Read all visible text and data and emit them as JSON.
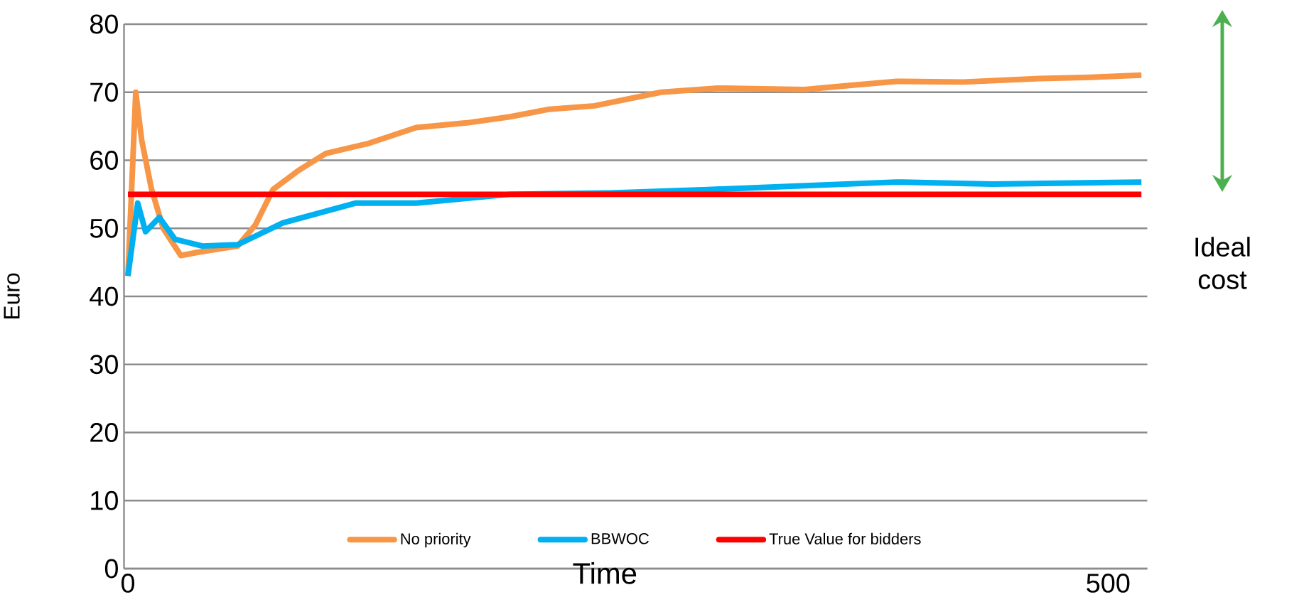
{
  "chart_data": {
    "type": "line",
    "xlabel": "Time",
    "ylabel": "Euro",
    "xlim": [
      -2,
      520
    ],
    "xticks": [
      0,
      500
    ],
    "ylim": [
      0,
      80
    ],
    "yticks": [
      0,
      10,
      20,
      30,
      40,
      50,
      60,
      70,
      80
    ],
    "grid": "y",
    "legend": "bottom",
    "annotations": [
      "Ideal cost"
    ],
    "series": [
      {
        "name": "No priority",
        "color": "#f79646",
        "x": [
          0,
          4,
          7,
          12,
          18,
          27,
          36,
          56,
          65,
          74,
          87,
          101,
          123,
          147,
          173,
          195,
          215,
          238,
          272,
          301,
          345,
          368,
          392,
          426,
          465,
          491,
          517
        ],
        "values": [
          43,
          70,
          63,
          55.8,
          50,
          46,
          46.5,
          47.4,
          50.5,
          55.7,
          58.5,
          61,
          62.5,
          64.8,
          65.5,
          66.4,
          67.5,
          68,
          70,
          70.6,
          70.4,
          71,
          71.6,
          71.5,
          72,
          72.2,
          72.5
        ]
      },
      {
        "name": "BBWOC",
        "color": "#00b0f0",
        "x": [
          0,
          5,
          9,
          16,
          24,
          38,
          56,
          79,
          116,
          147,
          195,
          246,
          296,
          392,
          441,
          517
        ],
        "values": [
          43,
          53.7,
          49.5,
          51.6,
          48.4,
          47.4,
          47.6,
          50.8,
          53.7,
          53.7,
          55,
          55.2,
          55.7,
          56.8,
          56.5,
          56.8
        ]
      },
      {
        "name": "True Value for bidders",
        "color": "#ff0000",
        "x": [
          0,
          517
        ],
        "values": [
          55,
          55
        ]
      }
    ]
  }
}
